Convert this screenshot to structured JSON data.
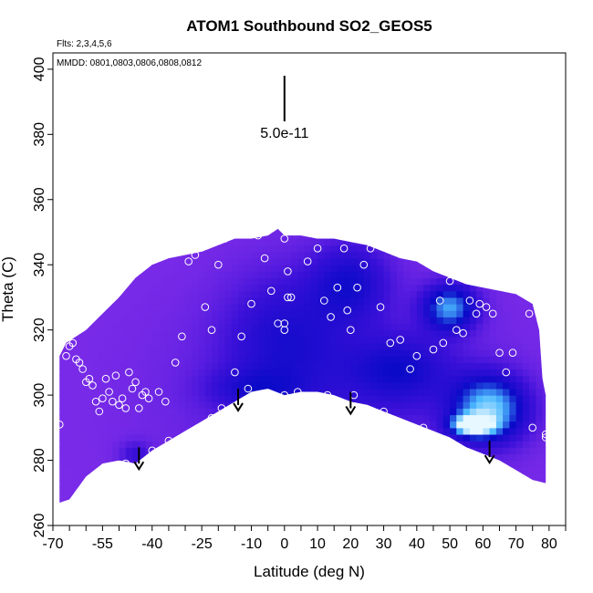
{
  "chart_data": {
    "type": "heatmap",
    "title": "ATOM1 Southbound SO2_GEOS5",
    "flights_label": "Flts: 2,3,4,5,6",
    "dates_label": "MMDD: 0801,0803,0806,0808,0812",
    "xlabel": "Latitude (deg N)",
    "ylabel": "Theta (C)",
    "xlim": [
      -70,
      85
    ],
    "ylim": [
      260,
      405
    ],
    "x_tick_labels": [
      "-70",
      "-55",
      "-40",
      "-25",
      "-10",
      "0",
      "10",
      "20",
      "30",
      "40",
      "50",
      "60",
      "70",
      "80"
    ],
    "x_tick_values": [
      -70,
      -55,
      -40,
      -25,
      -10,
      0,
      10,
      20,
      30,
      40,
      50,
      60,
      70,
      80
    ],
    "x_minor_step": 5,
    "y_tick_labels": [
      "260",
      "280",
      "300",
      "320",
      "340",
      "360",
      "380",
      "400"
    ],
    "y_tick_values": [
      260,
      280,
      300,
      320,
      340,
      360,
      380,
      400
    ],
    "scale_bar_label": "5.0e-11",
    "scale_bar": {
      "x": 0,
      "y_top": 398,
      "y_bottom": 384
    },
    "colors": {
      "background_low": "#7a2be8",
      "mid": "#3a10d8",
      "high": "#0a0ac8",
      "peak": "#4ab8ff",
      "max": "#e8f8ff",
      "marker": "#ffffff",
      "arrow": "#000000"
    },
    "top_boundary": [
      [
        -68,
        312
      ],
      [
        -66,
        316
      ],
      [
        -60,
        320
      ],
      [
        -55,
        325
      ],
      [
        -50,
        330
      ],
      [
        -45,
        336
      ],
      [
        -40,
        340
      ],
      [
        -35,
        342
      ],
      [
        -30,
        343
      ],
      [
        -25,
        344
      ],
      [
        -20,
        346
      ],
      [
        -15,
        348
      ],
      [
        -10,
        348
      ],
      [
        -5,
        349
      ],
      [
        -2,
        351
      ],
      [
        0,
        349
      ],
      [
        5,
        349
      ],
      [
        10,
        348
      ],
      [
        15,
        348
      ],
      [
        20,
        347
      ],
      [
        25,
        346
      ],
      [
        30,
        344
      ],
      [
        35,
        342
      ],
      [
        40,
        341
      ],
      [
        45,
        338
      ],
      [
        50,
        336
      ],
      [
        55,
        334
      ],
      [
        60,
        333
      ],
      [
        65,
        332
      ],
      [
        70,
        331
      ],
      [
        75,
        328
      ],
      [
        77,
        320
      ],
      [
        78,
        305
      ],
      [
        79,
        300
      ],
      [
        79,
        283
      ],
      [
        79,
        273
      ]
    ],
    "bottom_boundary": [
      [
        79,
        273
      ],
      [
        75,
        274
      ],
      [
        70,
        277
      ],
      [
        65,
        280
      ],
      [
        60,
        282
      ],
      [
        55,
        284
      ],
      [
        50,
        287
      ],
      [
        45,
        289
      ],
      [
        40,
        291
      ],
      [
        35,
        293
      ],
      [
        30,
        295
      ],
      [
        25,
        297
      ],
      [
        20,
        298
      ],
      [
        15,
        300
      ],
      [
        10,
        301
      ],
      [
        5,
        301
      ],
      [
        0,
        300
      ],
      [
        -5,
        302
      ],
      [
        -10,
        301
      ],
      [
        -15,
        298
      ],
      [
        -20,
        295
      ],
      [
        -25,
        292
      ],
      [
        -30,
        289
      ],
      [
        -35,
        286
      ],
      [
        -40,
        283
      ],
      [
        -45,
        279
      ],
      [
        -50,
        280
      ],
      [
        -55,
        279
      ],
      [
        -60,
        275
      ],
      [
        -65,
        268
      ],
      [
        -68,
        267
      ],
      [
        -68,
        290
      ],
      [
        -68,
        312
      ]
    ],
    "features": [
      {
        "x": 20,
        "y": 335,
        "rx": 12,
        "ry": 12,
        "v": 0.75
      },
      {
        "x": 0,
        "y": 318,
        "rx": 18,
        "ry": 20,
        "v": 0.6
      },
      {
        "x": 35,
        "y": 308,
        "rx": 15,
        "ry": 10,
        "v": 0.7
      },
      {
        "x": 50,
        "y": 327,
        "rx": 8,
        "ry": 7,
        "v": 1.45
      },
      {
        "x": 62,
        "y": 296,
        "rx": 11,
        "ry": 10,
        "v": 1.7
      },
      {
        "x": 57,
        "y": 291,
        "rx": 6,
        "ry": 3,
        "v": 2.1
      },
      {
        "x": -45,
        "y": 282,
        "rx": 5,
        "ry": 4,
        "v": 0.45
      },
      {
        "x": -10,
        "y": 302,
        "rx": 14,
        "ry": 6,
        "v": 0.45
      }
    ],
    "points": [
      [
        -66,
        312
      ],
      [
        -65,
        315
      ],
      [
        -64,
        316
      ],
      [
        -63,
        311
      ],
      [
        -62,
        310
      ],
      [
        -61,
        308
      ],
      [
        -60,
        304
      ],
      [
        -59,
        305
      ],
      [
        -58,
        303
      ],
      [
        -57,
        298
      ],
      [
        -56,
        295
      ],
      [
        -55,
        299
      ],
      [
        -54,
        305
      ],
      [
        -53,
        301
      ],
      [
        -52,
        298
      ],
      [
        -51,
        306
      ],
      [
        -50,
        297
      ],
      [
        -49,
        299
      ],
      [
        -48,
        296
      ],
      [
        -47,
        307
      ],
      [
        -46,
        302
      ],
      [
        -45,
        304
      ],
      [
        -44,
        296
      ],
      [
        -43,
        300
      ],
      [
        -42,
        301
      ],
      [
        -41,
        299
      ],
      [
        -38,
        301
      ],
      [
        -36,
        298
      ],
      [
        -33,
        310
      ],
      [
        -31,
        318
      ],
      [
        -29,
        341
      ],
      [
        -27,
        343
      ],
      [
        -24,
        327
      ],
      [
        -22,
        320
      ],
      [
        -20,
        340
      ],
      [
        -18,
        348
      ],
      [
        -15,
        307
      ],
      [
        -13,
        318
      ],
      [
        -11,
        302
      ],
      [
        -10,
        328
      ],
      [
        -8,
        349
      ],
      [
        -6,
        342
      ],
      [
        -4,
        332
      ],
      [
        -2,
        322
      ],
      [
        0,
        348
      ],
      [
        1,
        338
      ],
      [
        1,
        330
      ],
      [
        2,
        330
      ],
      [
        0,
        322
      ],
      [
        0,
        320
      ],
      [
        0,
        300
      ],
      [
        -1,
        299
      ],
      [
        4,
        301
      ],
      [
        7,
        341
      ],
      [
        10,
        345
      ],
      [
        12,
        329
      ],
      [
        13,
        300
      ],
      [
        14,
        324
      ],
      [
        16,
        333
      ],
      [
        18,
        345
      ],
      [
        19,
        326
      ],
      [
        20,
        320
      ],
      [
        21,
        300
      ],
      [
        22,
        333
      ],
      [
        24,
        340
      ],
      [
        26,
        345
      ],
      [
        29,
        327
      ],
      [
        30,
        295
      ],
      [
        32,
        316
      ],
      [
        35,
        317
      ],
      [
        38,
        308
      ],
      [
        40,
        312
      ],
      [
        42,
        290
      ],
      [
        45,
        314
      ],
      [
        47,
        329
      ],
      [
        48,
        316
      ],
      [
        50,
        335
      ],
      [
        52,
        320
      ],
      [
        54,
        319
      ],
      [
        56,
        329
      ],
      [
        58,
        325
      ],
      [
        59,
        328
      ],
      [
        61,
        327
      ],
      [
        63,
        325
      ],
      [
        65,
        313
      ],
      [
        67,
        307
      ],
      [
        69,
        313
      ],
      [
        72,
        332
      ],
      [
        74,
        325
      ],
      [
        75,
        290
      ],
      [
        79,
        287
      ],
      [
        79,
        288
      ],
      [
        -68,
        291
      ],
      [
        -51,
        277
      ],
      [
        -48,
        279
      ],
      [
        -44,
        278
      ],
      [
        -40,
        283
      ],
      [
        -35,
        286
      ],
      [
        -22,
        293
      ],
      [
        -19,
        296
      ]
    ],
    "arrows": [
      {
        "x": -44,
        "y_top": 284
      },
      {
        "x": -14,
        "y_top": 302
      },
      {
        "x": 20,
        "y_top": 301
      },
      {
        "x": 62,
        "y_top": 286
      }
    ]
  }
}
